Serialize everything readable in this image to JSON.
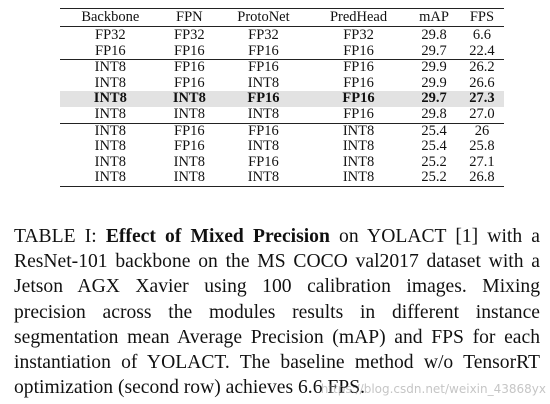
{
  "table": {
    "headers": [
      "Backbone",
      "FPN",
      "ProtoNet",
      "PredHead",
      "mAP",
      "FPS"
    ],
    "group1": [
      [
        "FP32",
        "FP32",
        "FP32",
        "FP32",
        "29.8",
        "6.6"
      ],
      [
        "FP16",
        "FP16",
        "FP16",
        "FP16",
        "29.7",
        "22.4"
      ]
    ],
    "group2": [
      [
        "INT8",
        "FP16",
        "FP16",
        "FP16",
        "29.9",
        "26.2"
      ],
      [
        "INT8",
        "FP16",
        "INT8",
        "FP16",
        "29.9",
        "26.6"
      ],
      [
        "INT8",
        "INT8",
        "FP16",
        "FP16",
        "29.7",
        "27.3"
      ],
      [
        "INT8",
        "INT8",
        "INT8",
        "FP16",
        "29.8",
        "27.0"
      ]
    ],
    "group3": [
      [
        "INT8",
        "FP16",
        "FP16",
        "INT8",
        "25.4",
        "26"
      ],
      [
        "INT8",
        "FP16",
        "INT8",
        "INT8",
        "25.4",
        "25.8"
      ],
      [
        "INT8",
        "INT8",
        "FP16",
        "INT8",
        "25.2",
        "27.1"
      ],
      [
        "INT8",
        "INT8",
        "INT8",
        "INT8",
        "25.2",
        "26.8"
      ]
    ]
  },
  "caption": {
    "label": "TABLE I: ",
    "title": "Effect of Mixed Precision",
    "text": " on YOLACT [1] with a ResNet-101 backbone on the MS COCO val2017 dataset with a Jetson AGX Xavier using 100 calibration images. Mixing precision across the modules results in different instance segmentation mean Average Precision (mAP) and FPS for each instantiation of YOLACT. The baseline method w/o TensorRT optimization (second row) achieves 6.6 FPS."
  },
  "watermark": "https://blog.csdn.net/weixin_43868yx"
}
